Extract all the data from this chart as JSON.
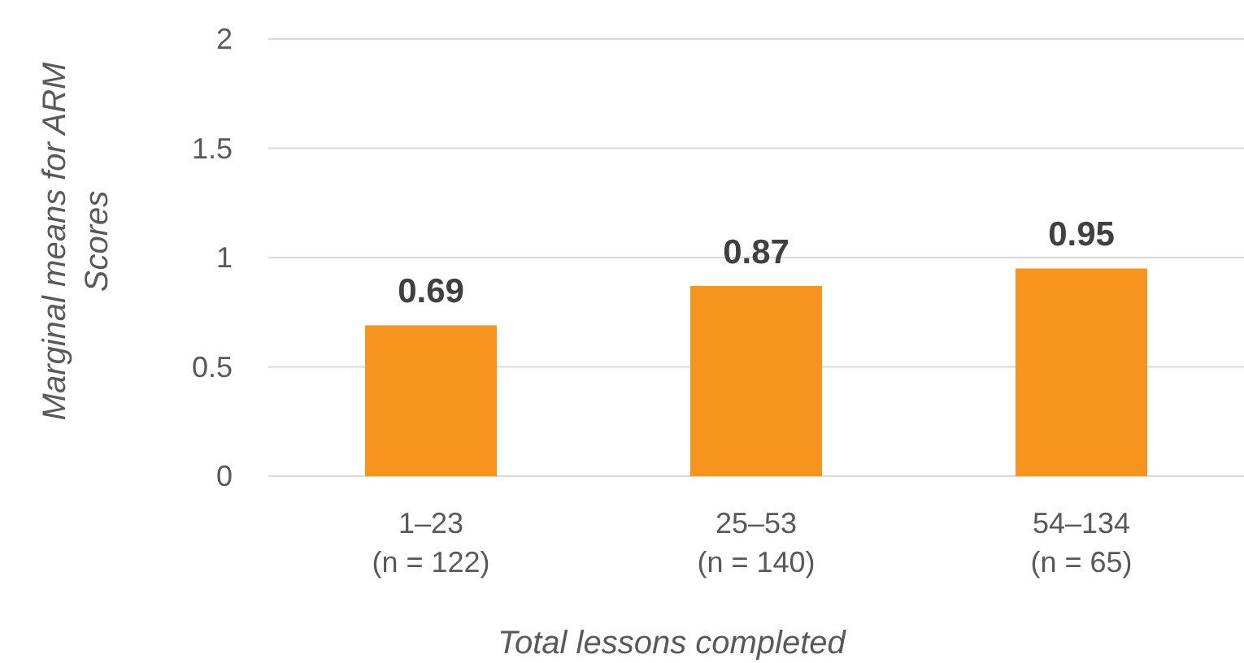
{
  "chart_data": {
    "type": "bar",
    "xlabel": "Total lessons completed",
    "ylabel": "Marginal means for ARM Scores",
    "categories": [
      "1–23\n(n = 122)",
      "25–53\n(n = 140)",
      "54–134\n(n = 65)"
    ],
    "values": [
      0.69,
      0.87,
      0.95
    ],
    "color": "#f7941d",
    "ylim": [
      0,
      2
    ],
    "yticks": [
      0,
      0.5,
      1,
      1.5,
      2
    ],
    "grid": "y",
    "data_labels": true
  }
}
